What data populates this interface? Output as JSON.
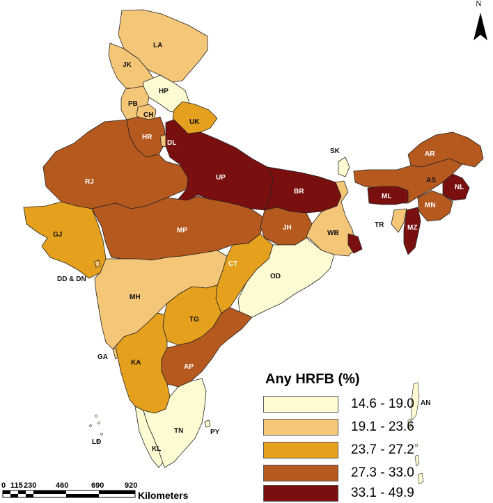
{
  "legend": {
    "title": "Any HRFB (%)",
    "classes": [
      {
        "range": "14.6 - 19.0",
        "color": "#fdfbd2"
      },
      {
        "range": "19.1 - 23.6",
        "color": "#f4c678"
      },
      {
        "range": "23.7 - 27.2",
        "color": "#e5a11e"
      },
      {
        "range": "27.3 - 33.0",
        "color": "#b5591f"
      },
      {
        "range": "33.1 - 49.9",
        "color": "#7a0f10"
      }
    ]
  },
  "north": "N",
  "scale": {
    "ticks": [
      "0",
      "115",
      "230",
      "460",
      "690",
      "920"
    ],
    "unit": "Kilometers"
  },
  "labels": {
    "LA": "LA",
    "JK": "JK",
    "HP": "HP",
    "PB": "PB",
    "CH": "CH",
    "UK": "UK",
    "HR": "HR",
    "DL": "DL",
    "RJ": "RJ",
    "UP": "UP",
    "BR": "BR",
    "SK": "SK",
    "AR": "AR",
    "AS": "AS",
    "NL": "NL",
    "ML": "ML",
    "MN": "MN",
    "TR": "TR",
    "MZ": "MZ",
    "GJ": "GJ",
    "MP": "MP",
    "JH": "JH",
    "WB": "WB",
    "CT": "CT",
    "OD": "OD",
    "DDDN": "DD & DN",
    "MH": "MH",
    "TG": "TG",
    "GA": "GA",
    "KA": "KA",
    "AP": "AP",
    "TN": "TN",
    "PY": "PY",
    "KL": "KL",
    "LD": "LD",
    "AN": "AN"
  }
}
